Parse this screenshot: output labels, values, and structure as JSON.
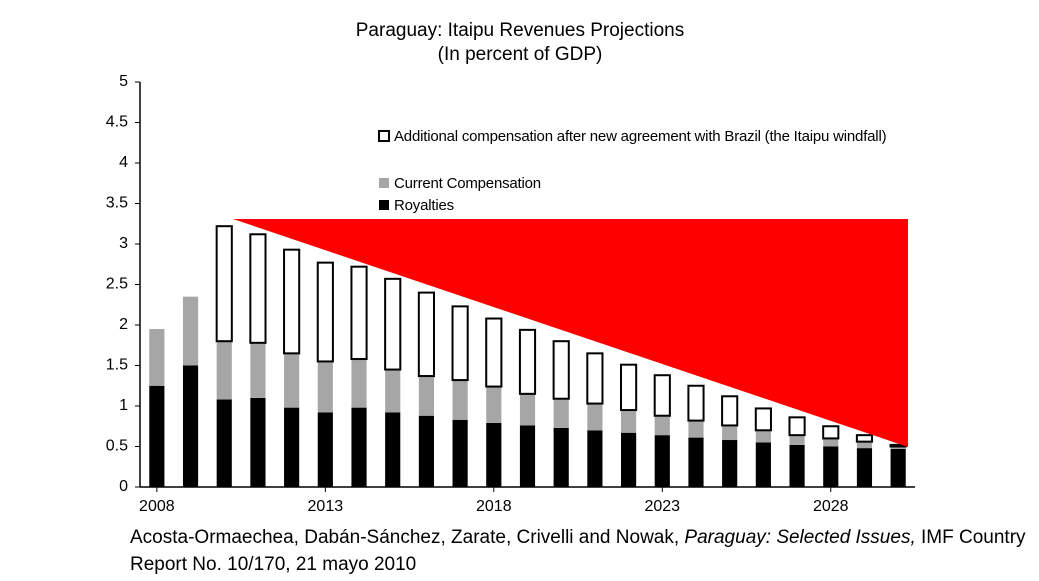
{
  "chart_data": {
    "type": "stacked_bar",
    "title": "Paraguay: Itaipu Revenues Projections",
    "subtitle": "(In percent of GDP)",
    "x": [
      2008,
      2009,
      2010,
      2011,
      2012,
      2013,
      2014,
      2015,
      2016,
      2017,
      2018,
      2019,
      2020,
      2021,
      2022,
      2023,
      2024,
      2025,
      2026,
      2027,
      2028,
      2029,
      2030
    ],
    "xlim": [
      2007.5,
      2030.5
    ],
    "xticks": [
      2008,
      2013,
      2018,
      2023,
      2028
    ],
    "ylim": [
      0,
      5
    ],
    "yticks": [
      0,
      0.5,
      1,
      1.5,
      2,
      2.5,
      3,
      3.5,
      4,
      4.5,
      5
    ],
    "series": [
      {
        "name": "Royalties",
        "color": "#000000",
        "values": [
          1.25,
          1.5,
          1.08,
          1.1,
          0.98,
          0.92,
          0.98,
          0.92,
          0.88,
          0.83,
          0.79,
          0.76,
          0.73,
          0.7,
          0.67,
          0.64,
          0.61,
          0.58,
          0.55,
          0.52,
          0.5,
          0.48,
          0.47
        ]
      },
      {
        "name": "Current Compensation",
        "color": "#a6a6a6",
        "values": [
          0.7,
          0.85,
          0.72,
          0.68,
          0.67,
          0.63,
          0.6,
          0.53,
          0.49,
          0.49,
          0.45,
          0.39,
          0.36,
          0.33,
          0.28,
          0.24,
          0.21,
          0.18,
          0.15,
          0.12,
          0.1,
          0.08,
          0.03
        ]
      },
      {
        "name": "Additional compensation after new agreement with Brazil (the Itaipu windfall)",
        "color": "#ffffff",
        "values": [
          0,
          0,
          1.42,
          1.34,
          1.28,
          1.22,
          1.14,
          1.12,
          1.03,
          0.91,
          0.84,
          0.79,
          0.71,
          0.62,
          0.56,
          0.5,
          0.43,
          0.36,
          0.27,
          0.22,
          0.15,
          0.08,
          0.02
        ]
      }
    ],
    "source": {
      "authors": "Acosta-Ormaechea, Dabán-Sánchez, Zarate, Crivelli and Nowak,",
      "publication": "Paraguay: Selected Issues,",
      "details": "IMF Country Report No. 10/170, 21 mayo 2010"
    }
  }
}
